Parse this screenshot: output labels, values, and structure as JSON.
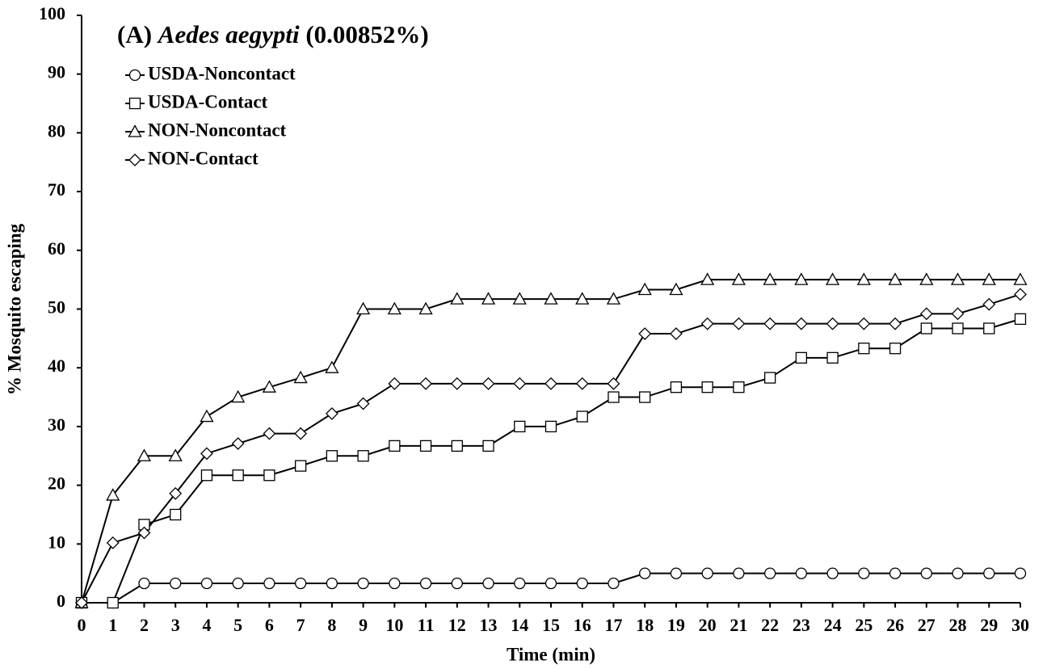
{
  "chart_data": {
    "type": "line",
    "title": [
      "(A) ",
      "Aedes aegypti",
      " (0.00852%)"
    ],
    "xlabel": "Time (min)",
    "ylabel": "% Mosquito escaping",
    "x": [
      0,
      1,
      2,
      3,
      4,
      5,
      6,
      7,
      8,
      9,
      10,
      11,
      12,
      13,
      14,
      15,
      16,
      17,
      18,
      19,
      20,
      21,
      22,
      23,
      24,
      25,
      26,
      27,
      28,
      29,
      30
    ],
    "xlim": [
      0,
      30
    ],
    "xticks": [
      0,
      1,
      2,
      3,
      4,
      5,
      6,
      7,
      8,
      9,
      10,
      11,
      12,
      13,
      14,
      15,
      16,
      17,
      18,
      19,
      20,
      21,
      22,
      23,
      24,
      25,
      26,
      27,
      28,
      29,
      30
    ],
    "ylim": [
      0,
      100
    ],
    "yticks": [
      0,
      10,
      20,
      30,
      40,
      50,
      60,
      70,
      80,
      90,
      100
    ],
    "grid": false,
    "legend": "upper-left",
    "series": [
      {
        "name": "USDA-Noncontact",
        "color": "#000000",
        "marker": "circle",
        "values": [
          0,
          0,
          3.3,
          3.3,
          3.3,
          3.3,
          3.3,
          3.3,
          3.3,
          3.3,
          3.3,
          3.3,
          3.3,
          3.3,
          3.3,
          3.3,
          3.3,
          3.3,
          5,
          5,
          5,
          5,
          5,
          5,
          5,
          5,
          5,
          5,
          5,
          5,
          5
        ]
      },
      {
        "name": "USDA-Contact",
        "color": "#000000",
        "marker": "square",
        "values": [
          0,
          0,
          13.3,
          15,
          21.7,
          21.7,
          21.7,
          23.3,
          25,
          25,
          26.7,
          26.7,
          26.7,
          26.7,
          30,
          30,
          31.7,
          35,
          35,
          36.7,
          36.7,
          36.7,
          38.3,
          41.7,
          41.7,
          43.3,
          43.3,
          46.7,
          46.7,
          46.7,
          48.3
        ]
      },
      {
        "name": "NON-Noncontact",
        "color": "#000000",
        "marker": "triangle",
        "values": [
          0,
          18.3,
          25,
          25,
          31.7,
          35,
          36.7,
          38.3,
          40,
          50,
          50,
          50,
          51.7,
          51.7,
          51.7,
          51.7,
          51.7,
          51.7,
          53.3,
          53.3,
          55,
          55,
          55,
          55,
          55,
          55,
          55,
          55,
          55,
          55,
          55
        ]
      },
      {
        "name": "NON-Contact",
        "color": "#000000",
        "marker": "diamond",
        "values": [
          0,
          10.2,
          11.9,
          18.6,
          25.4,
          27.1,
          28.8,
          28.8,
          32.2,
          33.9,
          37.3,
          37.3,
          37.3,
          37.3,
          37.3,
          37.3,
          37.3,
          37.3,
          45.8,
          45.8,
          47.5,
          47.5,
          47.5,
          47.5,
          47.5,
          47.5,
          47.5,
          49.2,
          49.2,
          50.8,
          52.5
        ]
      }
    ]
  }
}
